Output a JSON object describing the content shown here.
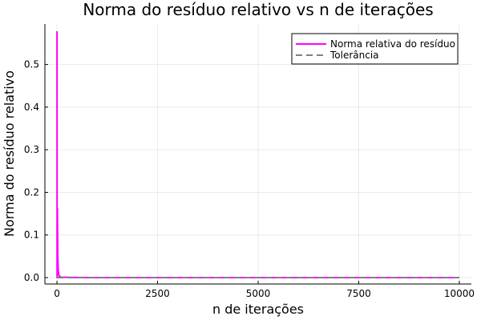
{
  "chart_data": {
    "type": "line",
    "title": "Norma do resíduo relativo vs n de iterações",
    "xlabel": "n de iterações",
    "ylabel": "Norma do resíduo relativo",
    "xlim": [
      -300,
      10300
    ],
    "ylim": [
      -0.015,
      0.595
    ],
    "xticks": [
      0,
      2500,
      5000,
      7500,
      10000
    ],
    "xtick_labels": [
      "0",
      "2500",
      "5000",
      "7500",
      "10000"
    ],
    "yticks": [
      0.0,
      0.1,
      0.2,
      0.3,
      0.4,
      0.5
    ],
    "ytick_labels": [
      "0.0",
      "0.1",
      "0.2",
      "0.3",
      "0.4",
      "0.5"
    ],
    "grid": true,
    "legend_position": "top-right",
    "series": [
      {
        "name": "Norma relativa do resíduo",
        "color": "#ff00ff",
        "style": "solid",
        "x": [
          1,
          2,
          3,
          10,
          20,
          30,
          40,
          50,
          100,
          500,
          1000,
          5000,
          10000
        ],
        "y": [
          0.578,
          0.4,
          0.0,
          0.163,
          0.05,
          0.02,
          0.01,
          0.004,
          0.001,
          0.0002,
          0.0001,
          2e-05,
          1e-05
        ]
      },
      {
        "name": "Tolerância",
        "color": "#808080",
        "style": "dashed",
        "x": [
          1,
          10000
        ],
        "y": [
          0.0001,
          0.0001
        ]
      }
    ]
  }
}
